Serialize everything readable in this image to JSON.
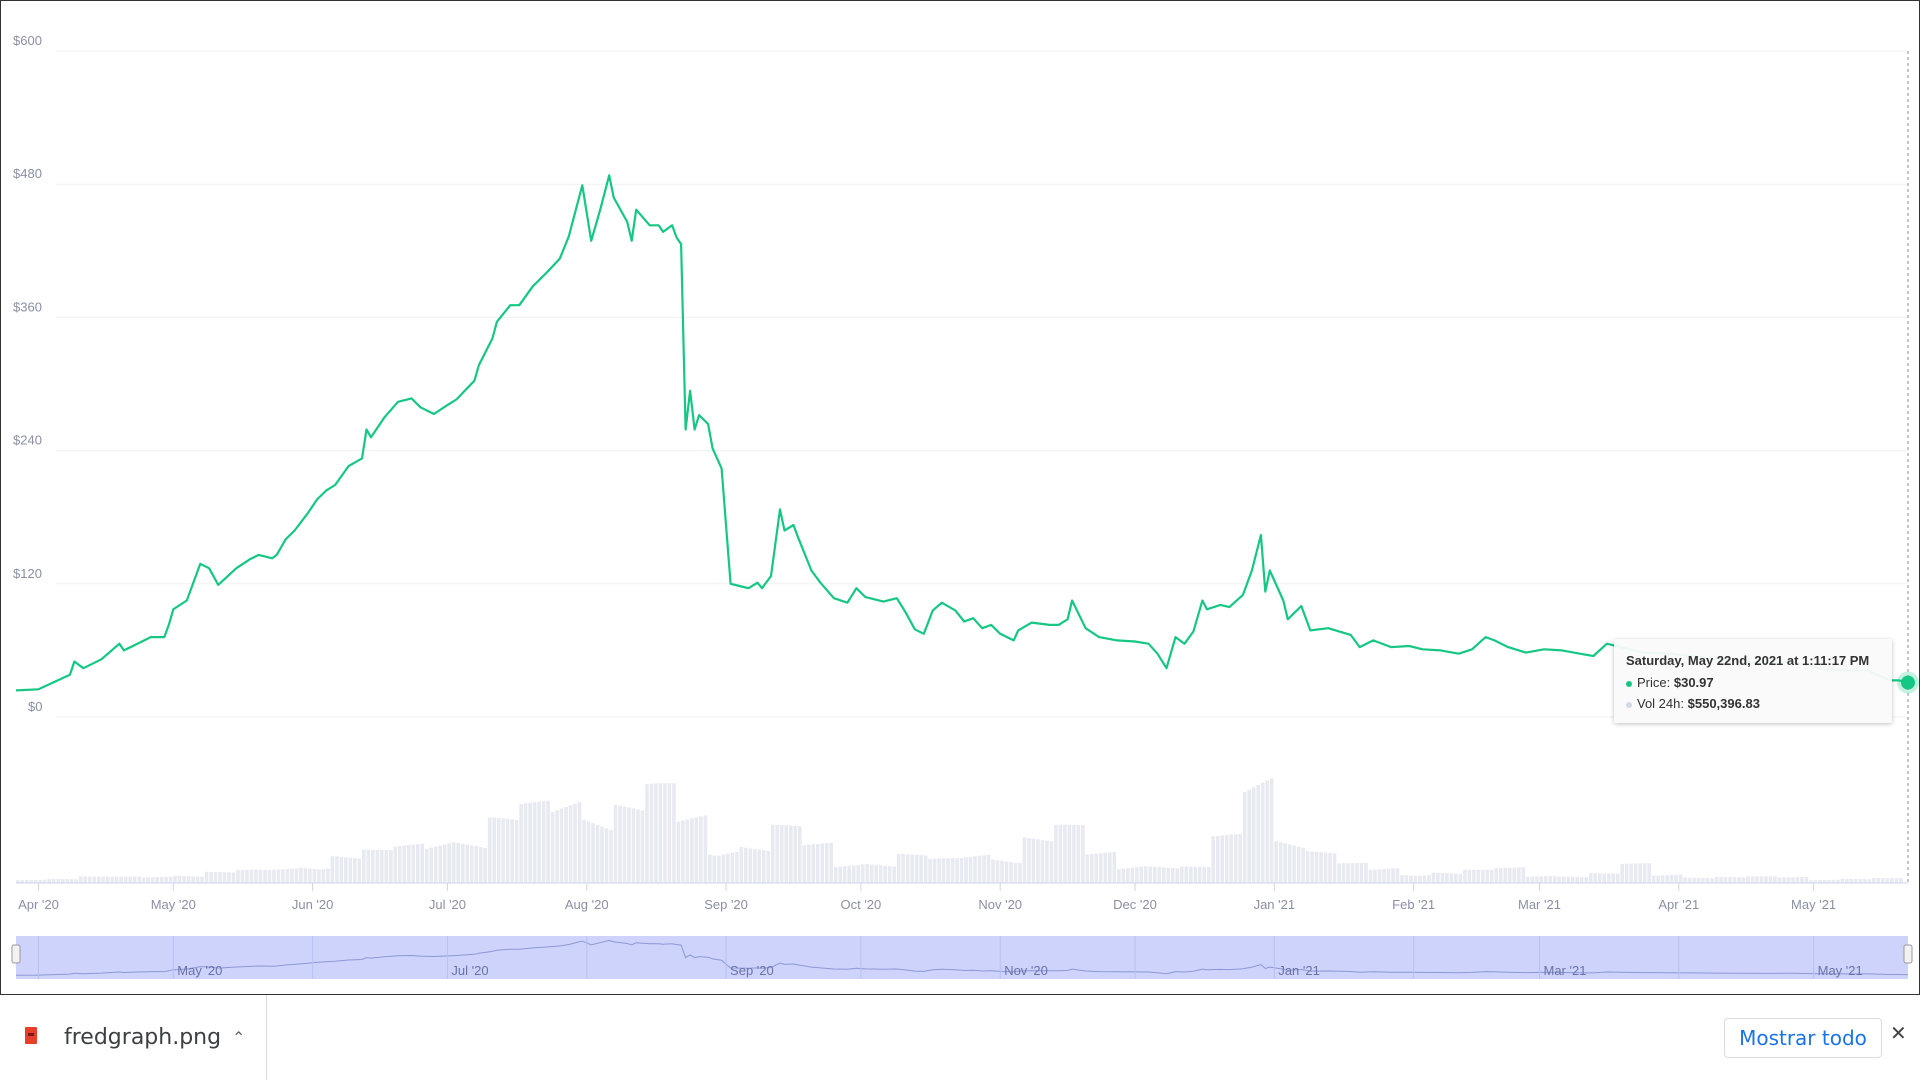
{
  "chart_data": {
    "type": "line",
    "y_ticks": [
      "$0",
      "$120",
      "$240",
      "$360",
      "$480",
      "$600"
    ],
    "y_tick_values": [
      0,
      120,
      240,
      360,
      480,
      600
    ],
    "ylim": [
      0,
      600
    ],
    "xlim": [
      "2020-03-27",
      "2021-05-22"
    ],
    "x_ticks": [
      {
        "label": "Apr '20",
        "date": "2020-04-01"
      },
      {
        "label": "May '20",
        "date": "2020-05-01"
      },
      {
        "label": "Jun '20",
        "date": "2020-06-01"
      },
      {
        "label": "Jul '20",
        "date": "2020-07-01"
      },
      {
        "label": "Aug '20",
        "date": "2020-08-01"
      },
      {
        "label": "Sep '20",
        "date": "2020-09-01"
      },
      {
        "label": "Oct '20",
        "date": "2020-10-01"
      },
      {
        "label": "Nov '20",
        "date": "2020-11-01"
      },
      {
        "label": "Dec '20",
        "date": "2020-12-01"
      },
      {
        "label": "Jan '21",
        "date": "2021-01-01"
      },
      {
        "label": "Feb '21",
        "date": "2021-02-01"
      },
      {
        "label": "Mar '21",
        "date": "2021-03-01"
      },
      {
        "label": "Apr '21",
        "date": "2021-04-01"
      },
      {
        "label": "May '21",
        "date": "2021-05-01"
      }
    ],
    "navigator_ticks": [
      {
        "label": "May '20",
        "date": "2020-05-01"
      },
      {
        "label": "Jul '20",
        "date": "2020-07-01"
      },
      {
        "label": "Sep '20",
        "date": "2020-09-01"
      },
      {
        "label": "Nov '20",
        "date": "2020-11-01"
      },
      {
        "label": "Jan '21",
        "date": "2021-01-01"
      },
      {
        "label": "Mar '21",
        "date": "2021-03-01"
      },
      {
        "label": "May '21",
        "date": "2021-05-01"
      }
    ],
    "grid": true,
    "colors": {
      "price": "#16c784",
      "volume": "#e8eaf2",
      "navigator": "#cdd3fb",
      "navigator_line": "#8e98d6"
    },
    "price": [
      [
        "2020-03-27",
        24
      ],
      [
        "2020-04-01",
        25
      ],
      [
        "2020-04-08",
        38
      ],
      [
        "2020-04-09",
        50
      ],
      [
        "2020-04-11",
        44
      ],
      [
        "2020-04-15",
        52
      ],
      [
        "2020-04-19",
        66
      ],
      [
        "2020-04-20",
        60
      ],
      [
        "2020-04-26",
        72
      ],
      [
        "2020-04-29",
        72
      ],
      [
        "2020-04-30",
        83
      ],
      [
        "2020-05-01",
        97
      ],
      [
        "2020-05-04",
        105
      ],
      [
        "2020-05-07",
        138
      ],
      [
        "2020-05-09",
        134
      ],
      [
        "2020-05-11",
        119
      ],
      [
        "2020-05-15",
        134
      ],
      [
        "2020-05-18",
        142
      ],
      [
        "2020-05-20",
        146
      ],
      [
        "2020-05-23",
        143
      ],
      [
        "2020-05-24",
        146
      ],
      [
        "2020-05-26",
        160
      ],
      [
        "2020-05-28",
        168
      ],
      [
        "2020-05-31",
        184
      ],
      [
        "2020-06-02",
        196
      ],
      [
        "2020-06-04",
        204
      ],
      [
        "2020-06-06",
        209
      ],
      [
        "2020-06-09",
        226
      ],
      [
        "2020-06-12",
        233
      ],
      [
        "2020-06-13",
        259
      ],
      [
        "2020-06-14",
        252
      ],
      [
        "2020-06-17",
        270
      ],
      [
        "2020-06-20",
        284
      ],
      [
        "2020-06-23",
        287
      ],
      [
        "2020-06-25",
        279
      ],
      [
        "2020-06-28",
        273
      ],
      [
        "2020-07-01",
        281
      ],
      [
        "2020-07-03",
        286
      ],
      [
        "2020-07-07",
        303
      ],
      [
        "2020-07-08",
        317
      ],
      [
        "2020-07-11",
        341
      ],
      [
        "2020-07-12",
        356
      ],
      [
        "2020-07-15",
        371
      ],
      [
        "2020-07-17",
        371
      ],
      [
        "2020-07-20",
        388
      ],
      [
        "2020-07-23",
        400
      ],
      [
        "2020-07-26",
        413
      ],
      [
        "2020-07-28",
        433
      ],
      [
        "2020-07-31",
        479
      ],
      [
        "2020-08-02",
        429
      ],
      [
        "2020-08-04",
        457
      ],
      [
        "2020-08-06",
        488
      ],
      [
        "2020-08-07",
        468
      ],
      [
        "2020-08-10",
        446
      ],
      [
        "2020-08-11",
        429
      ],
      [
        "2020-08-12",
        457
      ],
      [
        "2020-08-15",
        443
      ],
      [
        "2020-08-17",
        443
      ],
      [
        "2020-08-18",
        437
      ],
      [
        "2020-08-20",
        443
      ],
      [
        "2020-08-21",
        432
      ],
      [
        "2020-08-22",
        426
      ],
      [
        "2020-08-23",
        259
      ],
      [
        "2020-08-24",
        294
      ],
      [
        "2020-08-25",
        259
      ],
      [
        "2020-08-26",
        272
      ],
      [
        "2020-08-28",
        264
      ],
      [
        "2020-08-29",
        242
      ],
      [
        "2020-08-31",
        224
      ],
      [
        "2020-09-02",
        120
      ],
      [
        "2020-09-04",
        118
      ],
      [
        "2020-09-06",
        116
      ],
      [
        "2020-09-08",
        121
      ],
      [
        "2020-09-09",
        116
      ],
      [
        "2020-09-11",
        127
      ],
      [
        "2020-09-13",
        187
      ],
      [
        "2020-09-14",
        168
      ],
      [
        "2020-09-16",
        173
      ],
      [
        "2020-09-17",
        162
      ],
      [
        "2020-09-20",
        132
      ],
      [
        "2020-09-22",
        121
      ],
      [
        "2020-09-25",
        107
      ],
      [
        "2020-09-28",
        103
      ],
      [
        "2020-09-30",
        116
      ],
      [
        "2020-10-02",
        108
      ],
      [
        "2020-10-06",
        104
      ],
      [
        "2020-10-09",
        107
      ],
      [
        "2020-10-11",
        94
      ],
      [
        "2020-10-13",
        79
      ],
      [
        "2020-10-15",
        75
      ],
      [
        "2020-10-17",
        96
      ],
      [
        "2020-10-19",
        103
      ],
      [
        "2020-10-22",
        96
      ],
      [
        "2020-10-24",
        86
      ],
      [
        "2020-10-26",
        89
      ],
      [
        "2020-10-28",
        80
      ],
      [
        "2020-10-30",
        83
      ],
      [
        "2020-11-01",
        75
      ],
      [
        "2020-11-04",
        69
      ],
      [
        "2020-11-05",
        78
      ],
      [
        "2020-11-08",
        85
      ],
      [
        "2020-11-12",
        83
      ],
      [
        "2020-11-14",
        83
      ],
      [
        "2020-11-16",
        88
      ],
      [
        "2020-11-17",
        105
      ],
      [
        "2020-11-20",
        80
      ],
      [
        "2020-11-23",
        72
      ],
      [
        "2020-11-27",
        69
      ],
      [
        "2020-12-01",
        68
      ],
      [
        "2020-12-04",
        66
      ],
      [
        "2020-12-06",
        57
      ],
      [
        "2020-12-08",
        44
      ],
      [
        "2020-12-10",
        72
      ],
      [
        "2020-12-12",
        66
      ],
      [
        "2020-12-14",
        77
      ],
      [
        "2020-12-16",
        105
      ],
      [
        "2020-12-17",
        97
      ],
      [
        "2020-12-20",
        101
      ],
      [
        "2020-12-22",
        99
      ],
      [
        "2020-12-25",
        110
      ],
      [
        "2020-12-27",
        132
      ],
      [
        "2020-12-29",
        164
      ],
      [
        "2020-12-30",
        113
      ],
      [
        "2020-12-31",
        132
      ],
      [
        "2021-01-03",
        105
      ],
      [
        "2021-01-04",
        88
      ],
      [
        "2021-01-07",
        100
      ],
      [
        "2021-01-09",
        78
      ],
      [
        "2021-01-13",
        80
      ],
      [
        "2021-01-18",
        74
      ],
      [
        "2021-01-20",
        63
      ],
      [
        "2021-01-23",
        69
      ],
      [
        "2021-01-27",
        63
      ],
      [
        "2021-01-31",
        64
      ],
      [
        "2021-02-03",
        61
      ],
      [
        "2021-02-07",
        60
      ],
      [
        "2021-02-11",
        57
      ],
      [
        "2021-02-14",
        61
      ],
      [
        "2021-02-17",
        72
      ],
      [
        "2021-02-19",
        69
      ],
      [
        "2021-02-22",
        63
      ],
      [
        "2021-02-26",
        58
      ],
      [
        "2021-03-02",
        61
      ],
      [
        "2021-03-06",
        60
      ],
      [
        "2021-03-10",
        57
      ],
      [
        "2021-03-13",
        55
      ],
      [
        "2021-03-16",
        66
      ],
      [
        "2021-03-19",
        63
      ],
      [
        "2021-03-24",
        58
      ],
      [
        "2021-03-30",
        57
      ],
      [
        "2021-04-04",
        55
      ],
      [
        "2021-04-09",
        52
      ],
      [
        "2021-04-15",
        50
      ],
      [
        "2021-04-20",
        48
      ],
      [
        "2021-04-26",
        50
      ],
      [
        "2021-05-02",
        44
      ],
      [
        "2021-05-07",
        42
      ],
      [
        "2021-05-13",
        42
      ],
      [
        "2021-05-18",
        33
      ],
      [
        "2021-05-20",
        33
      ],
      [
        "2021-05-22",
        31
      ]
    ],
    "volume_relative_weekly": [
      0.03,
      0.03,
      0.04,
      0.04,
      0.05,
      0.06,
      0.07,
      0.08,
      0.1,
      0.15,
      0.18,
      0.2,
      0.25,
      0.35,
      0.3,
      0.4,
      0.5,
      0.6,
      0.55,
      0.5,
      0.6,
      0.45,
      0.3,
      0.25,
      0.35,
      0.25,
      0.15,
      0.15,
      0.18,
      0.15,
      0.2,
      0.22,
      0.3,
      0.35,
      0.2,
      0.15,
      0.12,
      0.1,
      0.3,
      0.8,
      0.35,
      0.2,
      0.12,
      0.1,
      0.08,
      0.07,
      0.08,
      0.1,
      0.06,
      0.05,
      0.06,
      0.12,
      0.06,
      0.05,
      0.04,
      0.04,
      0.04,
      0.03,
      0.03,
      0.03
    ]
  },
  "tooltip": {
    "title": "Saturday, May 22nd, 2021 at 1:11:17 PM",
    "price_label": "Price:",
    "price_value": "$30.97",
    "volume_label": "Vol 24h:",
    "volume_value": "$550,396.83"
  },
  "download_bar": {
    "file_name": "fredgraph.png",
    "show_all_label": "Mostrar todo",
    "file_icon": "image-file-icon",
    "chevron_icon": "chevron-up-icon",
    "close_icon": "close-icon"
  }
}
